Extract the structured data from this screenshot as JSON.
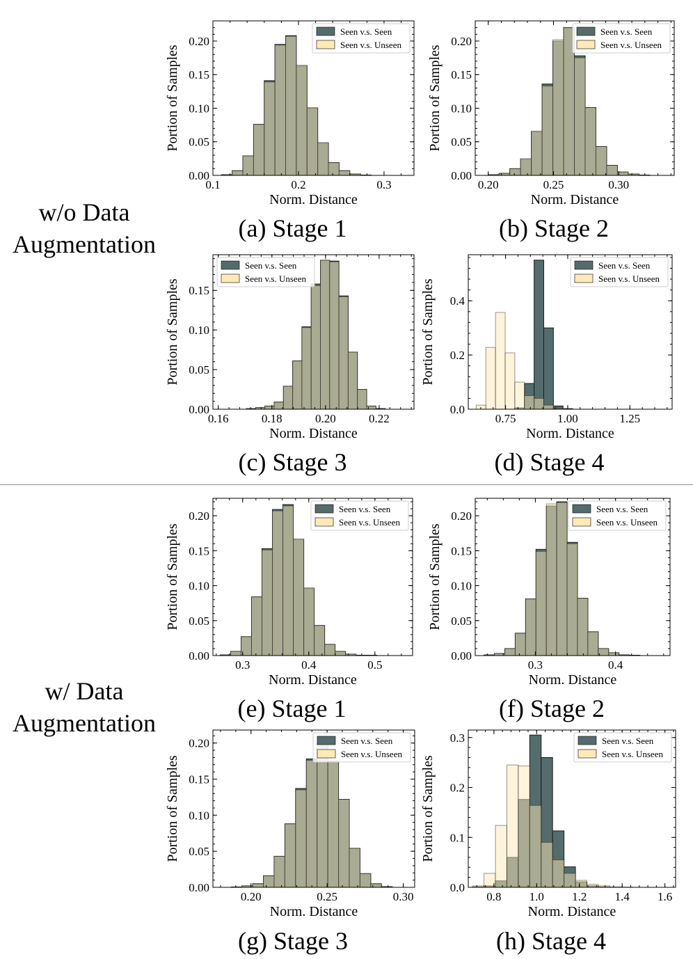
{
  "groups": {
    "without_aug": [
      "w/o Data",
      "Augmentation"
    ],
    "with_aug": [
      "w/ Data",
      "Augmentation"
    ]
  },
  "colors": {
    "seen": "#556c6c",
    "unseen": "#fdeab7",
    "overlap": "#a29e71",
    "edge": "#1a1a1a"
  },
  "chart_data": [
    {
      "type": "bar",
      "caption": "(a) Stage 1",
      "xlabel": "Norm. Distance",
      "ylabel": "Portion of Samples",
      "xlim": [
        0.1,
        0.335
      ],
      "ylim": [
        0,
        0.23
      ],
      "xticks": [
        0.1,
        0.2,
        0.3
      ],
      "xticklabels": [
        "0.1",
        "0.2",
        "0.3"
      ],
      "yticks": [
        0,
        0.05,
        0.1,
        0.15,
        0.2
      ],
      "yticklabels": [
        "0.00",
        "0.05",
        "0.10",
        "0.15",
        "0.20"
      ],
      "legend": {
        "position": "top-right",
        "labels": [
          "Seen v.s. Seen",
          "Seen v.s. Unseen"
        ]
      },
      "bin_start": 0.11,
      "bin_width": 0.0125,
      "series": [
        {
          "name": "Seen v.s. Seen",
          "values": [
            0.001,
            0.007,
            0.029,
            0.076,
            0.141,
            0.195,
            0.208,
            0.163,
            0.1,
            0.048,
            0.019,
            0.007,
            0.002,
            0.0005
          ]
        },
        {
          "name": "Seen v.s. Unseen",
          "values": [
            0.001,
            0.007,
            0.029,
            0.076,
            0.139,
            0.194,
            0.207,
            0.164,
            0.101,
            0.049,
            0.019,
            0.007,
            0.002,
            0.0005
          ]
        }
      ]
    },
    {
      "type": "bar",
      "caption": "(b) Stage 2",
      "xlabel": "Norm. Distance",
      "ylabel": "Portion of Samples",
      "xlim": [
        0.19,
        0.3425
      ],
      "ylim": [
        0,
        0.23
      ],
      "xticks": [
        0.2,
        0.25,
        0.3
      ],
      "xticklabels": [
        "0.20",
        "0.25",
        "0.30"
      ],
      "yticks": [
        0,
        0.05,
        0.1,
        0.15,
        0.2
      ],
      "yticklabels": [
        "0.00",
        "0.05",
        "0.10",
        "0.15",
        "0.20"
      ],
      "legend": {
        "position": "top-right",
        "labels": [
          "Seen v.s. Seen",
          "Seen v.s. Unseen"
        ]
      },
      "bin_start": 0.2,
      "bin_width": 0.00825,
      "series": [
        {
          "name": "Seen v.s. Seen",
          "values": [
            0.001,
            0.003,
            0.01,
            0.024,
            0.065,
            0.136,
            0.2,
            0.22,
            0.178,
            0.101,
            0.043,
            0.015,
            0.005,
            0.002,
            0.0005
          ]
        },
        {
          "name": "Seen v.s. Unseen",
          "values": [
            0.001,
            0.003,
            0.01,
            0.025,
            0.066,
            0.133,
            0.202,
            0.22,
            0.175,
            0.101,
            0.043,
            0.015,
            0.005,
            0.002,
            0.0005
          ]
        }
      ]
    },
    {
      "type": "bar",
      "caption": "(c) Stage 3",
      "xlabel": "Norm. Distance",
      "ylabel": "Portion of Samples",
      "xlim": [
        0.158,
        0.233
      ],
      "ylim": [
        0,
        0.195
      ],
      "xticks": [
        0.16,
        0.18,
        0.2,
        0.22
      ],
      "xticklabels": [
        "0.16",
        "0.18",
        "0.20",
        "0.22"
      ],
      "yticks": [
        0,
        0.05,
        0.1,
        0.15
      ],
      "yticklabels": [
        "0.00",
        "0.05",
        "0.10",
        "0.15"
      ],
      "legend": {
        "position": "top-left",
        "labels": [
          "Seen v.s. Seen",
          "Seen v.s. Unseen"
        ]
      },
      "bin_start": 0.1705,
      "bin_width": 0.00345,
      "series": [
        {
          "name": "Seen v.s. Seen",
          "values": [
            0.0008,
            0.002,
            0.004,
            0.009,
            0.029,
            0.061,
            0.104,
            0.158,
            0.188,
            0.187,
            0.143,
            0.072,
            0.025,
            0.004,
            0.0008
          ]
        },
        {
          "name": "Seen v.s. Unseen",
          "values": [
            0.0008,
            0.002,
            0.004,
            0.009,
            0.029,
            0.061,
            0.103,
            0.156,
            0.188,
            0.186,
            0.142,
            0.072,
            0.025,
            0.004,
            0.0008
          ]
        }
      ]
    },
    {
      "type": "bar",
      "caption": "(d) Stage 4",
      "xlabel": "Norm. Distance",
      "ylabel": "Portion of Samples",
      "xlim": [
        0.6,
        1.42
      ],
      "ylim": [
        0,
        0.57
      ],
      "xticks": [
        0.75,
        1.0,
        1.25
      ],
      "xticklabels": [
        "0.75",
        "1.00",
        "1.25"
      ],
      "yticks": [
        0,
        0.2,
        0.4
      ],
      "yticklabels": [
        "0.0",
        "0.2",
        "0.4"
      ],
      "legend": {
        "position": "top-right",
        "labels": [
          "Seen v.s. Seen",
          "Seen v.s. Unseen"
        ]
      },
      "bin_start": 0.632,
      "bin_width": 0.0388,
      "series": [
        {
          "name": "Seen v.s. Seen",
          "values": [
            0,
            0,
            0,
            0,
            0.005,
            0.095,
            0.55,
            0.3,
            0.012,
            0.002,
            0,
            0,
            0
          ]
        },
        {
          "name": "Seen v.s. Unseen",
          "values": [
            0.015,
            0.228,
            0.357,
            0.208,
            0.1,
            0.05,
            0.04,
            0.015,
            0.003,
            0,
            0,
            0,
            0
          ]
        }
      ]
    },
    {
      "type": "bar",
      "caption": "(e) Stage 1",
      "xlabel": "Norm. Distance",
      "ylabel": "Portion of Samples",
      "xlim": [
        0.255,
        0.557
      ],
      "ylim": [
        0,
        0.225
      ],
      "xticks": [
        0.3,
        0.4,
        0.5
      ],
      "xticklabels": [
        "0.3",
        "0.4",
        "0.5"
      ],
      "yticks": [
        0,
        0.05,
        0.1,
        0.15,
        0.2
      ],
      "yticklabels": [
        "0.00",
        "0.05",
        "0.10",
        "0.15",
        "0.20"
      ],
      "legend": {
        "position": "top-right",
        "labels": [
          "Seen v.s. Seen",
          "Seen v.s. Unseen"
        ]
      },
      "bin_start": 0.266,
      "bin_width": 0.0158,
      "series": [
        {
          "name": "Seen v.s. Seen",
          "values": [
            0.001,
            0.006,
            0.027,
            0.084,
            0.153,
            0.209,
            0.216,
            0.166,
            0.096,
            0.043,
            0.016,
            0.006,
            0.002,
            0.0005,
            0.0005
          ]
        },
        {
          "name": "Seen v.s. Unseen",
          "values": [
            0.001,
            0.006,
            0.027,
            0.084,
            0.151,
            0.207,
            0.214,
            0.167,
            0.097,
            0.043,
            0.016,
            0.006,
            0.002,
            0.0005,
            0.0005
          ]
        }
      ]
    },
    {
      "type": "bar",
      "caption": "(f) Stage 2",
      "xlabel": "Norm. Distance",
      "ylabel": "Portion of Samples",
      "xlim": [
        0.225,
        0.468
      ],
      "ylim": [
        0,
        0.225
      ],
      "xticks": [
        0.3,
        0.4
      ],
      "xticklabels": [
        "0.3",
        "0.4"
      ],
      "yticks": [
        0,
        0.05,
        0.1,
        0.15,
        0.2
      ],
      "yticklabels": [
        "0.00",
        "0.05",
        "0.10",
        "0.15",
        "0.20"
      ],
      "legend": {
        "position": "top-right",
        "labels": [
          "Seen v.s. Seen",
          "Seen v.s. Unseen"
        ]
      },
      "bin_start": 0.236,
      "bin_width": 0.01295,
      "series": [
        {
          "name": "Seen v.s. Seen",
          "values": [
            0.001,
            0.003,
            0.01,
            0.032,
            0.081,
            0.152,
            0.214,
            0.22,
            0.162,
            0.082,
            0.034,
            0.01,
            0.004,
            0.001,
            0.0005
          ]
        },
        {
          "name": "Seen v.s. Unseen",
          "values": [
            0.001,
            0.003,
            0.01,
            0.032,
            0.081,
            0.149,
            0.217,
            0.219,
            0.16,
            0.082,
            0.034,
            0.01,
            0.004,
            0.001,
            0.0005
          ]
        }
      ]
    },
    {
      "type": "bar",
      "caption": "(g) Stage 3",
      "xlabel": "Norm. Distance",
      "ylabel": "Portion of Samples",
      "xlim": [
        0.175,
        0.3075
      ],
      "ylim": [
        0,
        0.218
      ],
      "xticks": [
        0.2,
        0.25,
        0.3
      ],
      "xticklabels": [
        "0.20",
        "0.25",
        "0.30"
      ],
      "yticks": [
        0,
        0.05,
        0.1,
        0.15,
        0.2
      ],
      "yticklabels": [
        "0.00",
        "0.05",
        "0.10",
        "0.15",
        "0.20"
      ],
      "legend": {
        "position": "top-right",
        "labels": [
          "Seen v.s. Seen",
          "Seen v.s. Unseen"
        ]
      },
      "bin_start": 0.187,
      "bin_width": 0.00705,
      "series": [
        {
          "name": "Seen v.s. Seen",
          "values": [
            0.0005,
            0.002,
            0.005,
            0.016,
            0.043,
            0.088,
            0.137,
            0.178,
            0.2,
            0.175,
            0.122,
            0.054,
            0.019,
            0.005,
            0.001
          ]
        },
        {
          "name": "Seen v.s. Unseen",
          "values": [
            0.0005,
            0.002,
            0.005,
            0.016,
            0.043,
            0.088,
            0.135,
            0.176,
            0.198,
            0.175,
            0.122,
            0.054,
            0.019,
            0.005,
            0.001
          ]
        }
      ]
    },
    {
      "type": "bar",
      "caption": "(h) Stage 4",
      "xlabel": "Norm. Distance",
      "ylabel": "Portion of Samples",
      "xlim": [
        0.68,
        1.65
      ],
      "ylim": [
        0,
        0.315
      ],
      "xticks": [
        0.8,
        1.0,
        1.2,
        1.4,
        1.6
      ],
      "xticklabels": [
        "0.8",
        "1.0",
        "1.2",
        "1.4",
        "1.6"
      ],
      "yticks": [
        0,
        0.1,
        0.2,
        0.3
      ],
      "yticklabels": [
        "0.0",
        "0.1",
        "0.2",
        "0.3"
      ],
      "legend": {
        "position": "top-right",
        "labels": [
          "Seen v.s. Seen",
          "Seen v.s. Unseen"
        ]
      },
      "bin_start": 0.7,
      "bin_width": 0.0535,
      "series": [
        {
          "name": "Seen v.s. Seen",
          "values": [
            0.001,
            0.003,
            0.013,
            0.06,
            0.176,
            0.305,
            0.26,
            0.113,
            0.041,
            0.011,
            0.003,
            0.001,
            0,
            0,
            0,
            0,
            0
          ]
        },
        {
          "name": "Seen v.s. Unseen",
          "values": [
            0.003,
            0.028,
            0.124,
            0.245,
            0.243,
            0.164,
            0.09,
            0.055,
            0.028,
            0.014,
            0.006,
            0.003,
            0.001,
            0.0005,
            0,
            0,
            0
          ]
        }
      ]
    }
  ]
}
